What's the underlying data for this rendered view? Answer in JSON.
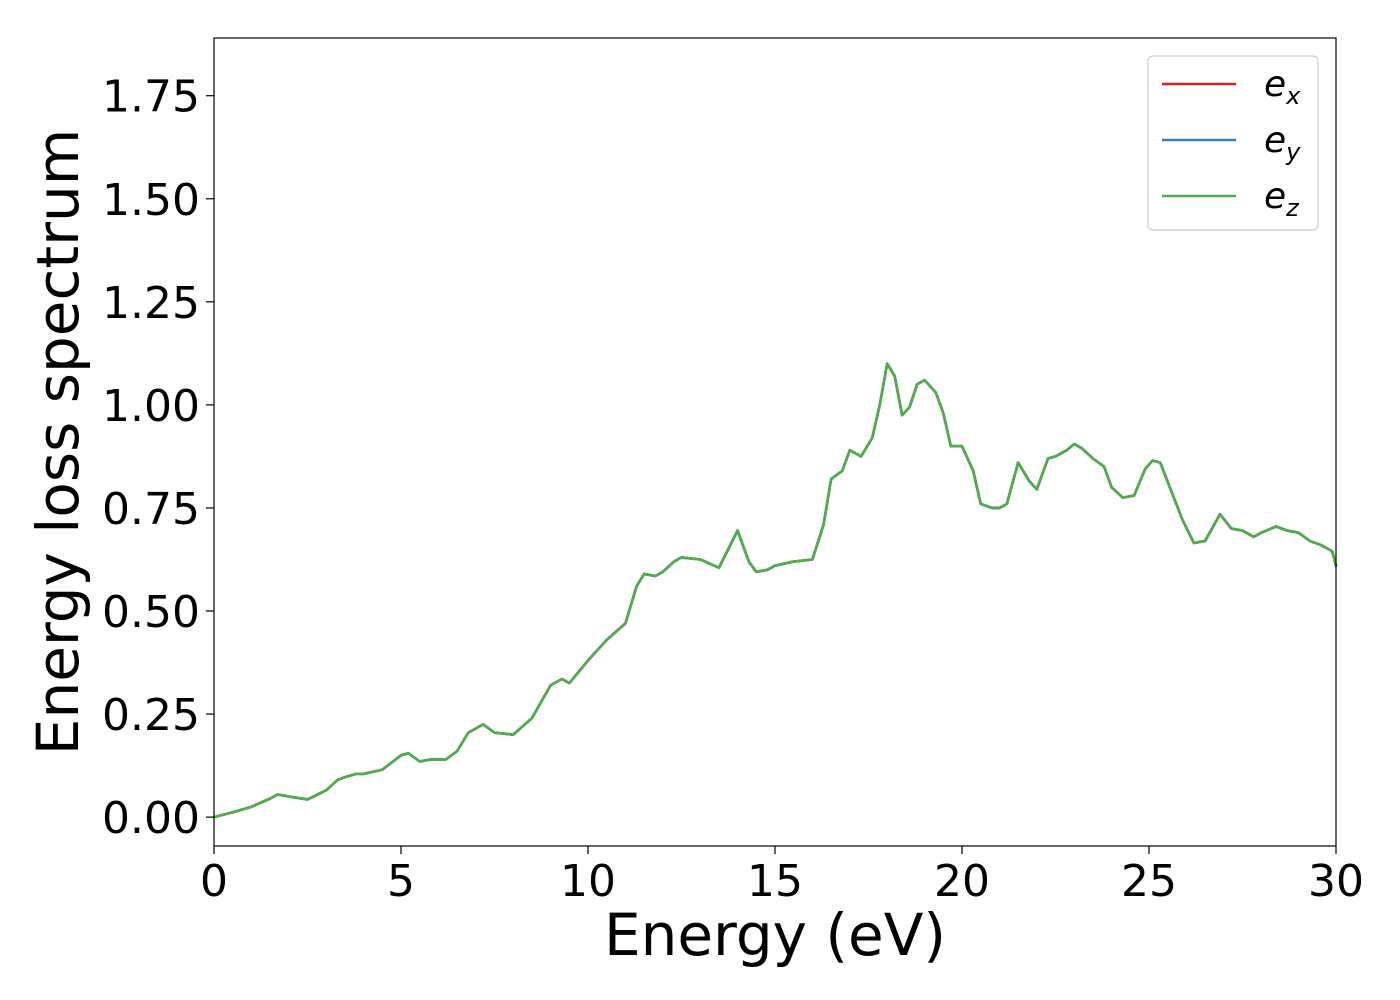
{
  "chart_data": {
    "type": "line",
    "title": "",
    "xlabel": "Energy (eV)",
    "ylabel": "Energy loss spectrum",
    "xlim": [
      0,
      30
    ],
    "ylim": [
      -0.07,
      1.89
    ],
    "xticks": [
      0,
      5,
      10,
      15,
      20,
      25,
      30
    ],
    "xtick_labels": [
      "0",
      "5",
      "10",
      "15",
      "20",
      "25",
      "30"
    ],
    "yticks": [
      0.0,
      0.25,
      0.5,
      0.75,
      1.0,
      1.25,
      1.5,
      1.75
    ],
    "ytick_labels": [
      "0.00",
      "0.25",
      "0.50",
      "0.75",
      "1.00",
      "1.25",
      "1.50",
      "1.75"
    ],
    "grid": false,
    "legend_position": "top-right",
    "x": [
      0,
      0.5,
      1.0,
      1.5,
      1.7,
      2.0,
      2.5,
      3.0,
      3.3,
      3.5,
      3.8,
      4.0,
      4.5,
      5.0,
      5.2,
      5.5,
      5.8,
      6.2,
      6.5,
      6.8,
      7.0,
      7.2,
      7.5,
      8.0,
      8.5,
      9.0,
      9.3,
      9.5,
      10.0,
      10.5,
      11.0,
      11.3,
      11.5,
      11.8,
      12.0,
      12.3,
      12.5,
      13.0,
      13.5,
      14.0,
      14.3,
      14.5,
      14.8,
      15.0,
      15.5,
      16.0,
      16.3,
      16.5,
      16.8,
      17.0,
      17.3,
      17.6,
      17.8,
      18.0,
      18.2,
      18.4,
      18.6,
      18.8,
      19.0,
      19.3,
      19.5,
      19.7,
      20.0,
      20.3,
      20.5,
      20.8,
      21.0,
      21.2,
      21.5,
      21.8,
      22.0,
      22.3,
      22.5,
      22.8,
      23.0,
      23.2,
      23.5,
      23.8,
      24.0,
      24.3,
      24.6,
      24.9,
      25.1,
      25.3,
      25.6,
      25.9,
      26.2,
      26.5,
      26.9,
      27.2,
      27.5,
      27.8,
      28.0,
      28.4,
      28.7,
      29.0,
      29.3,
      29.6,
      29.9,
      30.0
    ],
    "series": [
      {
        "name": "e_x",
        "label_base": "e",
        "label_sub": "x",
        "color": "#e41a1c",
        "values": [
          0.0,
          0.012,
          0.025,
          0.045,
          0.055,
          0.05,
          0.043,
          0.065,
          0.09,
          0.097,
          0.105,
          0.105,
          0.115,
          0.15,
          0.155,
          0.135,
          0.14,
          0.14,
          0.16,
          0.205,
          0.215,
          0.225,
          0.205,
          0.2,
          0.24,
          0.32,
          0.335,
          0.325,
          0.38,
          0.43,
          0.47,
          0.56,
          0.59,
          0.585,
          0.595,
          0.62,
          0.63,
          0.625,
          0.605,
          0.695,
          0.62,
          0.595,
          0.6,
          0.61,
          0.62,
          0.625,
          0.71,
          0.82,
          0.84,
          0.89,
          0.875,
          0.92,
          1.0,
          1.1,
          1.07,
          0.975,
          0.995,
          1.05,
          1.06,
          1.03,
          0.98,
          0.9,
          0.9,
          0.84,
          0.76,
          0.75,
          0.75,
          0.76,
          0.86,
          0.815,
          0.795,
          0.87,
          0.875,
          0.89,
          0.905,
          0.895,
          0.87,
          0.85,
          0.8,
          0.775,
          0.78,
          0.845,
          0.865,
          0.86,
          0.79,
          0.72,
          0.665,
          0.67,
          0.735,
          0.7,
          0.695,
          0.68,
          0.69,
          0.705,
          0.695,
          0.69,
          0.67,
          0.66,
          0.645,
          0.61
        ]
      },
      {
        "name": "e_y",
        "label_base": "e",
        "label_sub": "y",
        "color": "#377eb8",
        "values": [
          0.0,
          0.012,
          0.025,
          0.045,
          0.055,
          0.05,
          0.043,
          0.065,
          0.09,
          0.097,
          0.105,
          0.105,
          0.115,
          0.15,
          0.155,
          0.135,
          0.14,
          0.14,
          0.16,
          0.205,
          0.215,
          0.225,
          0.205,
          0.2,
          0.24,
          0.32,
          0.335,
          0.325,
          0.38,
          0.43,
          0.47,
          0.56,
          0.59,
          0.585,
          0.595,
          0.62,
          0.63,
          0.625,
          0.605,
          0.695,
          0.62,
          0.595,
          0.6,
          0.61,
          0.62,
          0.625,
          0.71,
          0.82,
          0.84,
          0.89,
          0.875,
          0.92,
          1.0,
          1.1,
          1.07,
          0.975,
          0.995,
          1.05,
          1.06,
          1.03,
          0.98,
          0.9,
          0.9,
          0.84,
          0.76,
          0.75,
          0.75,
          0.76,
          0.86,
          0.815,
          0.795,
          0.87,
          0.875,
          0.89,
          0.905,
          0.895,
          0.87,
          0.85,
          0.8,
          0.775,
          0.78,
          0.845,
          0.865,
          0.86,
          0.79,
          0.72,
          0.665,
          0.67,
          0.735,
          0.7,
          0.695,
          0.68,
          0.69,
          0.705,
          0.695,
          0.69,
          0.67,
          0.66,
          0.645,
          0.61
        ]
      },
      {
        "name": "e_z",
        "label_base": "e",
        "label_sub": "z",
        "color": "#4daf4a",
        "values": [
          0.0,
          0.012,
          0.025,
          0.045,
          0.055,
          0.05,
          0.043,
          0.065,
          0.09,
          0.097,
          0.105,
          0.105,
          0.115,
          0.15,
          0.155,
          0.135,
          0.14,
          0.14,
          0.16,
          0.205,
          0.215,
          0.225,
          0.205,
          0.2,
          0.24,
          0.32,
          0.335,
          0.325,
          0.38,
          0.43,
          0.47,
          0.56,
          0.59,
          0.585,
          0.595,
          0.62,
          0.63,
          0.625,
          0.605,
          0.695,
          0.62,
          0.595,
          0.6,
          0.61,
          0.62,
          0.625,
          0.71,
          0.82,
          0.84,
          0.89,
          0.875,
          0.92,
          1.0,
          1.1,
          1.07,
          0.975,
          0.995,
          1.05,
          1.06,
          1.03,
          0.98,
          0.9,
          0.9,
          0.84,
          0.76,
          0.75,
          0.75,
          0.76,
          0.86,
          0.815,
          0.795,
          0.87,
          0.875,
          0.89,
          0.905,
          0.895,
          0.87,
          0.85,
          0.8,
          0.775,
          0.78,
          0.845,
          0.865,
          0.86,
          0.79,
          0.72,
          0.665,
          0.67,
          0.735,
          0.7,
          0.695,
          0.68,
          0.69,
          0.705,
          0.695,
          0.69,
          0.67,
          0.66,
          0.645,
          0.61
        ]
      }
    ]
  }
}
